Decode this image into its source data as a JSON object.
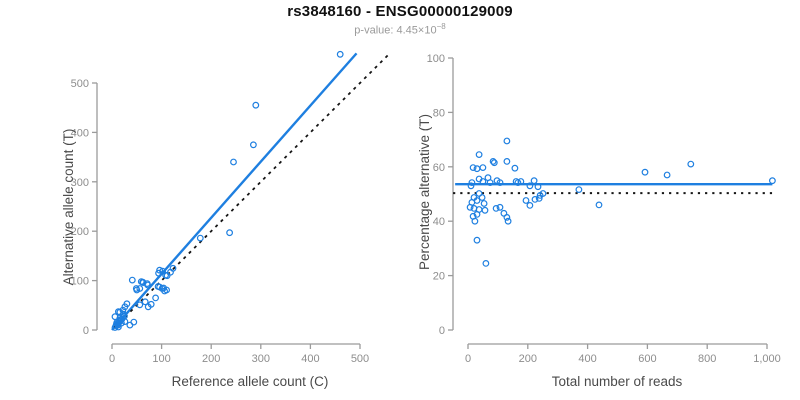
{
  "header": {
    "title": "rs3848160 - ENSG00000129009",
    "pvalue_text": "p-value: 4.45×10",
    "pvalue_exponent": "−8"
  },
  "style": {
    "accent_blue": "#1E7FE0",
    "reference_line_black": "#151515",
    "axis_line_gray": "#9b9b9b",
    "tick_label_gray": "#8d8d8d",
    "axis_title_gray": "#4a4a4a",
    "title_color": "#111111",
    "subtitle_gray": "#9a9a9a",
    "background": "#ffffff"
  },
  "chart_data": [
    {
      "id": "allele-count-scatter",
      "type": "scatter",
      "xlabel": "Reference allele count (C)",
      "ylabel": "Alternative allele count (T)",
      "xlim": [
        0,
        560
      ],
      "ylim": [
        0,
        570
      ],
      "grid": false,
      "legend": "none",
      "xticks": [
        0,
        100,
        200,
        300,
        400,
        500
      ],
      "xtick_labels": [
        "0",
        "100",
        "200",
        "300",
        "400",
        "500"
      ],
      "yticks": [
        0,
        100,
        200,
        300,
        400,
        500
      ],
      "ytick_labels": [
        "0",
        "100",
        "200",
        "300",
        "400",
        "500"
      ],
      "lines": [
        {
          "name": "fitted-line",
          "style": "solid",
          "width": 2.4,
          "color_key": "accent_blue",
          "from": [
            0,
            0
          ],
          "to": [
            493,
            560
          ]
        },
        {
          "name": "identity-line",
          "style": "dashed",
          "width": 1.8,
          "color_key": "reference_line_black",
          "from": [
            5,
            5
          ],
          "to": [
            557,
            557
          ]
        }
      ],
      "points": [
        [
          460,
          558
        ],
        [
          290,
          455
        ],
        [
          285,
          375
        ],
        [
          245,
          340
        ],
        [
          237,
          197
        ],
        [
          178,
          186
        ],
        [
          123,
          125
        ],
        [
          118,
          117
        ],
        [
          111,
          110
        ],
        [
          108,
          111
        ],
        [
          102,
          119
        ],
        [
          96,
          121
        ],
        [
          94,
          115
        ],
        [
          110,
          81
        ],
        [
          106,
          79
        ],
        [
          104,
          85
        ],
        [
          101,
          84
        ],
        [
          96,
          87
        ],
        [
          93,
          88
        ],
        [
          41,
          101
        ],
        [
          59,
          98
        ],
        [
          71,
          94
        ],
        [
          62,
          97
        ],
        [
          72,
          91
        ],
        [
          49,
          84
        ],
        [
          50,
          81
        ],
        [
          56,
          84
        ],
        [
          63,
          96
        ],
        [
          88,
          65
        ],
        [
          67,
          57
        ],
        [
          79,
          52
        ],
        [
          73,
          47
        ],
        [
          56,
          51
        ],
        [
          44,
          16
        ],
        [
          30,
          53
        ],
        [
          26,
          47
        ],
        [
          22,
          40
        ],
        [
          16,
          36
        ],
        [
          13,
          37
        ],
        [
          23,
          32
        ],
        [
          6,
          27
        ],
        [
          16,
          24
        ],
        [
          26,
          17
        ],
        [
          36,
          10
        ],
        [
          9,
          13
        ],
        [
          8,
          9
        ],
        [
          11,
          12
        ],
        [
          14,
          15
        ],
        [
          12,
          10
        ],
        [
          18,
          20
        ],
        [
          20,
          22
        ],
        [
          10,
          16
        ],
        [
          15,
          18
        ],
        [
          19,
          14
        ],
        [
          22,
          25
        ],
        [
          25,
          28
        ],
        [
          17,
          21
        ],
        [
          13,
          6
        ],
        [
          6,
          5
        ]
      ]
    },
    {
      "id": "percentage-reads-scatter",
      "type": "scatter",
      "xlabel": "Total number of reads",
      "ylabel": "Percentage alternative (T)",
      "xlim": [
        0,
        1020
      ],
      "ylim": [
        0,
        100
      ],
      "grid": false,
      "legend": "none",
      "xticks": [
        0,
        200,
        400,
        600,
        800,
        1000
      ],
      "xtick_labels": [
        "0",
        "200",
        "400",
        "600",
        "800",
        "1,000"
      ],
      "yticks": [
        0,
        20,
        40,
        60,
        80,
        100
      ],
      "ytick_labels": [
        "0",
        "20",
        "40",
        "60",
        "80",
        "100"
      ],
      "lines": [
        {
          "name": "fitted-line",
          "style": "solid",
          "width": 2.4,
          "color_key": "accent_blue",
          "from": [
            -43,
            53.6
          ],
          "to": [
            1018,
            53.6
          ]
        },
        {
          "name": "null-50pct-line",
          "style": "dotted",
          "width": 2,
          "color_key": "reference_line_black",
          "from": [
            -50,
            50.3
          ],
          "to": [
            1018,
            50.3
          ]
        }
      ],
      "points": [
        [
          37,
          64.5
        ],
        [
          17,
          59.7
        ],
        [
          30,
          59.3
        ],
        [
          50,
          59.7
        ],
        [
          84,
          62
        ],
        [
          88,
          61.5
        ],
        [
          130,
          69.5
        ],
        [
          130,
          62
        ],
        [
          157,
          59.5
        ],
        [
          37,
          55.5
        ],
        [
          13,
          54.2
        ],
        [
          10,
          53
        ],
        [
          50,
          54.6
        ],
        [
          67,
          56
        ],
        [
          74,
          54.2
        ],
        [
          97,
          54.9
        ],
        [
          107,
          54.2
        ],
        [
          161,
          54.6
        ],
        [
          167,
          54.2
        ],
        [
          177,
          54.6
        ],
        [
          207,
          53
        ],
        [
          221,
          54.9
        ],
        [
          234,
          52.7
        ],
        [
          251,
          50.2
        ],
        [
          241,
          49.5
        ],
        [
          238,
          48.4
        ],
        [
          224,
          48
        ],
        [
          207,
          45.8
        ],
        [
          194,
          47.6
        ],
        [
          37,
          50.2
        ],
        [
          20,
          48.7
        ],
        [
          30,
          47.6
        ],
        [
          13,
          46.9
        ],
        [
          47,
          48.7
        ],
        [
          54,
          46.5
        ],
        [
          7,
          45.1
        ],
        [
          20,
          44.7
        ],
        [
          37,
          44.3
        ],
        [
          57,
          44
        ],
        [
          94,
          44.7
        ],
        [
          107,
          45.1
        ],
        [
          120,
          42.9
        ],
        [
          130,
          41.4
        ],
        [
          17,
          41.8
        ],
        [
          30,
          42.5
        ],
        [
          23,
          40
        ],
        [
          134,
          40
        ],
        [
          30,
          33
        ],
        [
          60,
          24.5
        ],
        [
          371,
          51.6
        ],
        [
          438,
          46
        ],
        [
          592,
          58
        ],
        [
          666,
          57
        ],
        [
          745,
          61
        ],
        [
          1018,
          54.9
        ]
      ]
    }
  ]
}
